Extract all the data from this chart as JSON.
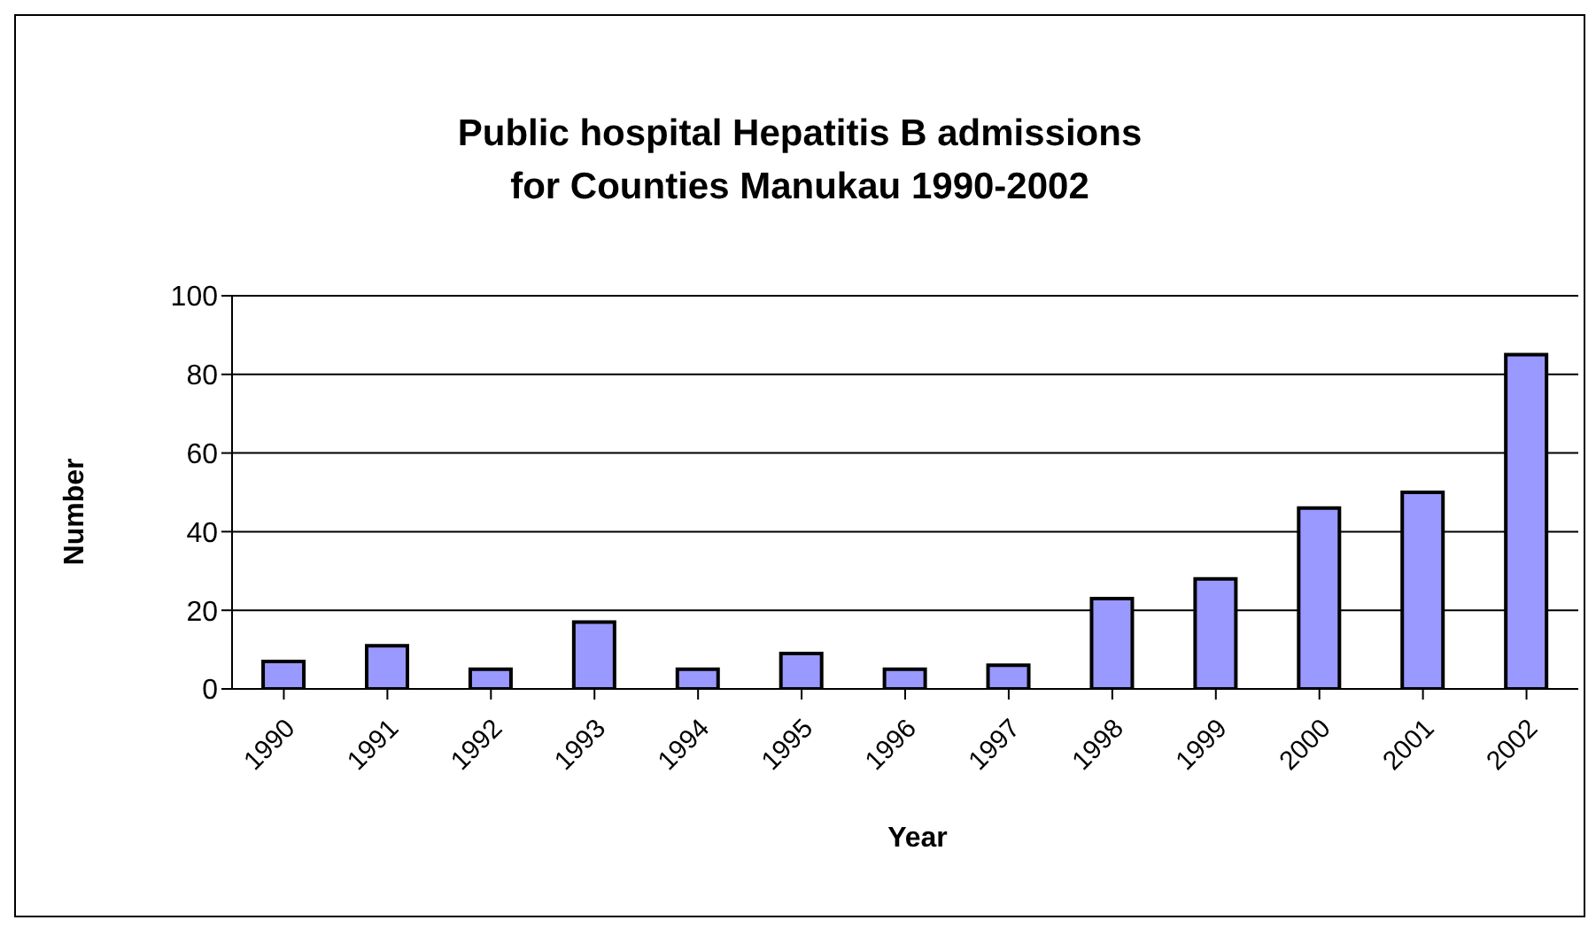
{
  "chart_data": {
    "type": "bar",
    "title": "Public hospital Hepatitis B admissions\nfor Counties Manukau 1990-2002",
    "xlabel": "Year",
    "ylabel": "Number",
    "categories": [
      "1990",
      "1991",
      "1992",
      "1993",
      "1994",
      "1995",
      "1996",
      "1997",
      "1998",
      "1999",
      "2000",
      "2001",
      "2002"
    ],
    "values": [
      7,
      11,
      5,
      17,
      5,
      9,
      5,
      6,
      23,
      28,
      46,
      50,
      85
    ],
    "color": "#9999ff",
    "ylim": [
      0,
      100
    ],
    "yticks": [
      0,
      20,
      40,
      60,
      80,
      100
    ],
    "grid": "y",
    "legend": false
  }
}
